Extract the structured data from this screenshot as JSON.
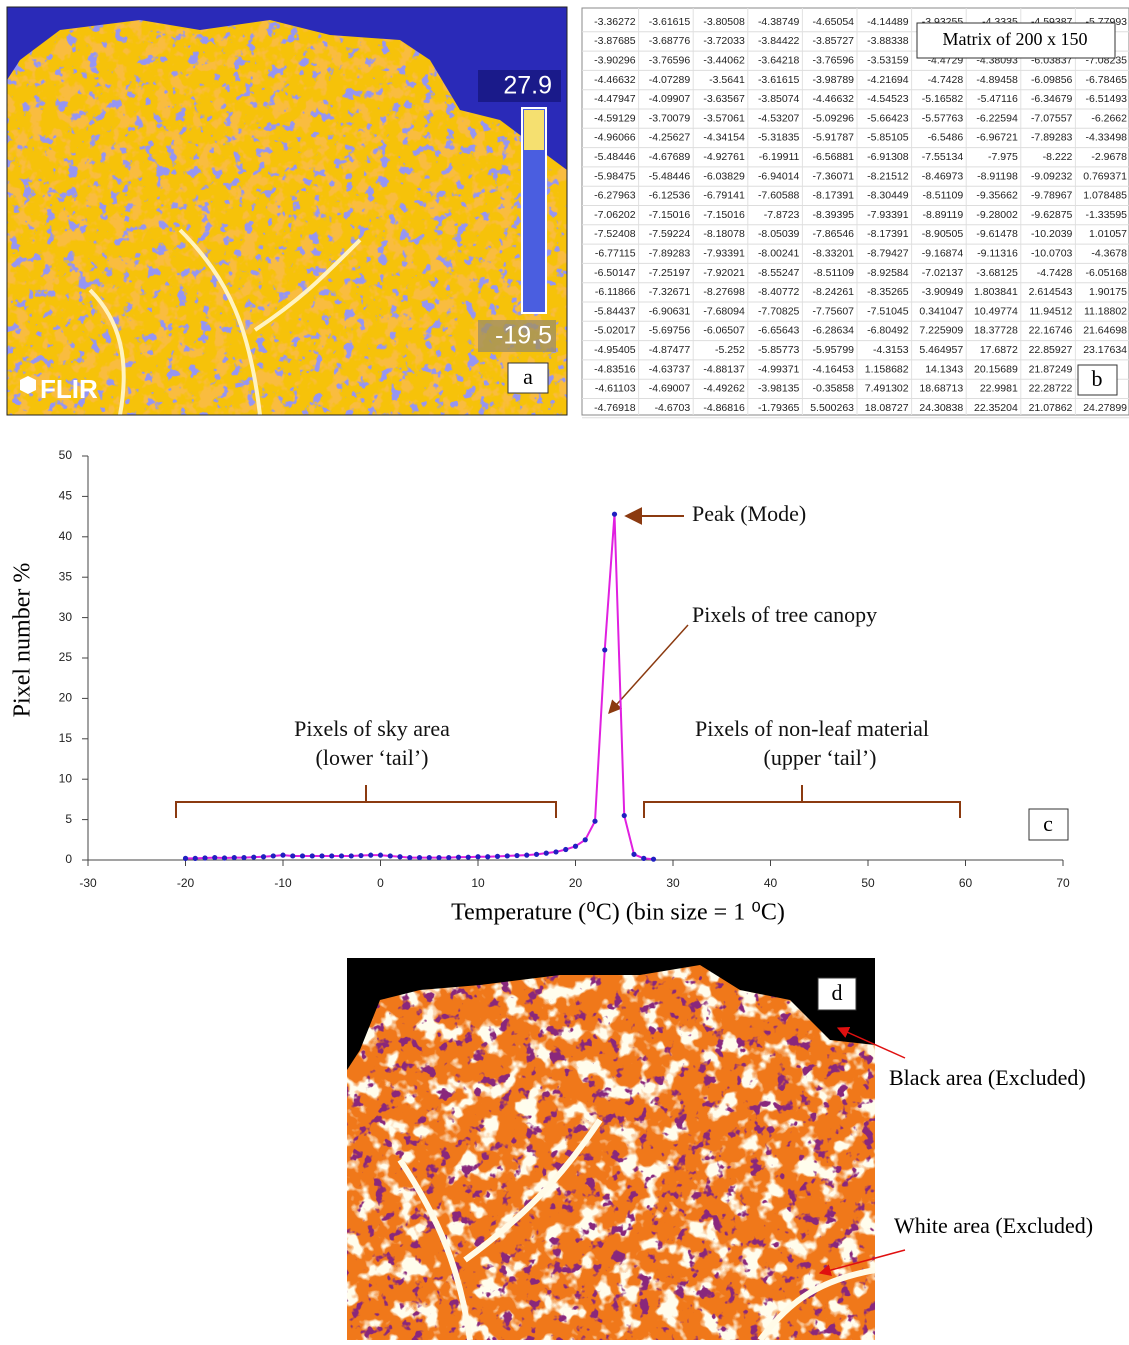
{
  "panel_a": {
    "max_label": "27.9",
    "min_label": "-19.5",
    "brand": "FLIR",
    "label": "a"
  },
  "panel_b": {
    "overlay": "Matrix  of 200 x 150",
    "label": "b",
    "rows": [
      [
        "-3.36272",
        "-3.61615",
        "-3.80508",
        "-4.38749",
        "-4.65054",
        "-4.14489",
        "-3.93255",
        "-4.3335",
        "-4.59387",
        "-5.77993"
      ],
      [
        "-3.87685",
        "-3.68776",
        "-3.72033",
        "-3.84422",
        "-3.85727",
        "-3.88338",
        null,
        null,
        null,
        null
      ],
      [
        "-3.90296",
        "-3.76596",
        "-3.44062",
        "-3.64218",
        "-3.76596",
        "-3.53159",
        "-4.4729",
        "-4.38093",
        "-6.03837",
        "-7.08235"
      ],
      [
        "-4.46632",
        "-4.07289",
        "-3.5641",
        "-3.61615",
        "-3.98789",
        "-4.21694",
        "-4.7428",
        "-4.89458",
        "-6.09856",
        "-6.78465"
      ],
      [
        "-4.47947",
        "-4.09907",
        "-3.63567",
        "-3.85074",
        "-4.46632",
        "-4.54523",
        "-5.16582",
        "-5.47116",
        "-6.34679",
        "-6.51493"
      ],
      [
        "-4.59129",
        "-3.70079",
        "-3.57061",
        "-4.53207",
        "-5.09296",
        "-5.66423",
        "-5.57763",
        "-6.22594",
        "-7.07557",
        "-6.2662"
      ],
      [
        "-4.96066",
        "-4.25627",
        "-4.34154",
        "-5.31835",
        "-5.91787",
        "-5.85105",
        "-6.5486",
        "-6.96721",
        "-7.89283",
        "-4.33498"
      ],
      [
        "-5.48446",
        "-4.67689",
        "-4.92761",
        "-6.19911",
        "-6.56881",
        "-6.91308",
        "-7.55134",
        "-7.975",
        "-8.222",
        "-2.9678"
      ],
      [
        "-5.98475",
        "-5.48446",
        "-6.03829",
        "-6.94014",
        "-7.36071",
        "-8.21512",
        "-8.46973",
        "-8.91198",
        "-9.09232",
        "0.769371"
      ],
      [
        "-6.27963",
        "-6.12536",
        "-6.79141",
        "-7.60588",
        "-8.17391",
        "-8.30449",
        "-8.51109",
        "-9.35662",
        "-9.78967",
        "1.078485"
      ],
      [
        "-7.06202",
        "-7.15016",
        "-7.15016",
        "-7.8723",
        "-8.39395",
        "-7.93391",
        "-8.89119",
        "-9.28002",
        "-9.62875",
        "-1.33595"
      ],
      [
        "-7.52408",
        "-7.59224",
        "-8.18078",
        "-8.05039",
        "-7.86546",
        "-8.17391",
        "-8.90505",
        "-9.61478",
        "-10.2039",
        "1.01057"
      ],
      [
        "-6.77115",
        "-7.89283",
        "-7.93391",
        "-8.00241",
        "-8.33201",
        "-8.79427",
        "-9.16874",
        "-9.11316",
        "-10.0703",
        "-4.3678"
      ],
      [
        "-6.50147",
        "-7.25197",
        "-7.92021",
        "-8.55247",
        "-8.51109",
        "-8.92584",
        "-7.02137",
        "-3.68125",
        "-4.7428",
        "-6.05168"
      ],
      [
        "-6.11866",
        "-7.32671",
        "-8.27698",
        "-8.40772",
        "-8.24261",
        "-8.35265",
        "-3.90949",
        "1.803841",
        "2.614543",
        "1.90175"
      ],
      [
        "-5.84437",
        "-6.90631",
        "-7.68094",
        "-7.70825",
        "-7.75607",
        "-7.51045",
        "0.341047",
        "10.49774",
        "11.94512",
        "11.18802"
      ],
      [
        "-5.02017",
        "-5.69756",
        "-6.06507",
        "-6.65643",
        "-6.28634",
        "-6.80492",
        "7.225909",
        "18.37728",
        "22.16746",
        "21.64698"
      ],
      [
        "-4.95405",
        "-4.87477",
        "-5.252",
        "-5.85773",
        "-5.95799",
        "-4.3153",
        "5.464957",
        "17.6872",
        "22.85927",
        "23.17634"
      ],
      [
        "-4.83516",
        "-4.63737",
        "-4.88137",
        "-4.99371",
        "-4.16453",
        "1.158682",
        "14.1343",
        "20.15689",
        "21.87249",
        null
      ],
      [
        "-4.61103",
        "-4.69007",
        "-4.49262",
        "-3.98135",
        "-0.35858",
        "7.491302",
        "18.68713",
        "22.9981",
        "22.28722",
        null
      ],
      [
        "-4.76918",
        "-4.6703",
        "-4.86816",
        "-1.79365",
        "5.500263",
        "18.08727",
        "24.30838",
        "22.35204",
        "21.07862",
        "24.27899"
      ]
    ]
  },
  "chart_data": {
    "type": "line",
    "x_label": "Temperature (⁰C)  (bin size = 1 ⁰C)",
    "y_label": "Pixel number %",
    "x": [
      -20,
      -19,
      -18,
      -17,
      -16,
      -15,
      -14,
      -13,
      -12,
      -11,
      -10,
      -9,
      -8,
      -7,
      -6,
      -5,
      -4,
      -3,
      -2,
      -1,
      0,
      1,
      2,
      3,
      4,
      5,
      6,
      7,
      8,
      9,
      10,
      11,
      12,
      13,
      14,
      15,
      16,
      17,
      18,
      19,
      20,
      21,
      22,
      23,
      24,
      25,
      26,
      27,
      28
    ],
    "values": [
      0.2,
      0.2,
      0.25,
      0.3,
      0.25,
      0.3,
      0.3,
      0.35,
      0.4,
      0.5,
      0.6,
      0.5,
      0.5,
      0.5,
      0.5,
      0.5,
      0.5,
      0.5,
      0.55,
      0.6,
      0.6,
      0.5,
      0.4,
      0.3,
      0.3,
      0.3,
      0.3,
      0.3,
      0.35,
      0.35,
      0.4,
      0.4,
      0.45,
      0.5,
      0.55,
      0.6,
      0.7,
      0.85,
      1.0,
      1.3,
      1.7,
      2.5,
      4.8,
      26,
      42.8,
      5.5,
      0.7,
      0.2,
      0.1
    ],
    "line_color": "#e020e0",
    "marker_color": "#2020c0",
    "xlim": [
      -30,
      70
    ],
    "xticks": [
      -30,
      -20,
      -10,
      0,
      10,
      20,
      30,
      40,
      50,
      60,
      70
    ],
    "ylim": [
      0,
      50
    ],
    "yticks": [
      0,
      5,
      10,
      15,
      20,
      25,
      30,
      35,
      40,
      45,
      50
    ],
    "annotations": [
      "Peak (Mode)",
      "Pixels of tree canopy",
      "Pixels of sky area",
      "(lower ‘tail’)",
      "Pixels of non-leaf material",
      "(upper ‘tail’)"
    ],
    "panel_label": "c"
  },
  "panel_d": {
    "label": "d",
    "annotations": [
      "Black area (Excluded)",
      "White area (Excluded)"
    ]
  }
}
